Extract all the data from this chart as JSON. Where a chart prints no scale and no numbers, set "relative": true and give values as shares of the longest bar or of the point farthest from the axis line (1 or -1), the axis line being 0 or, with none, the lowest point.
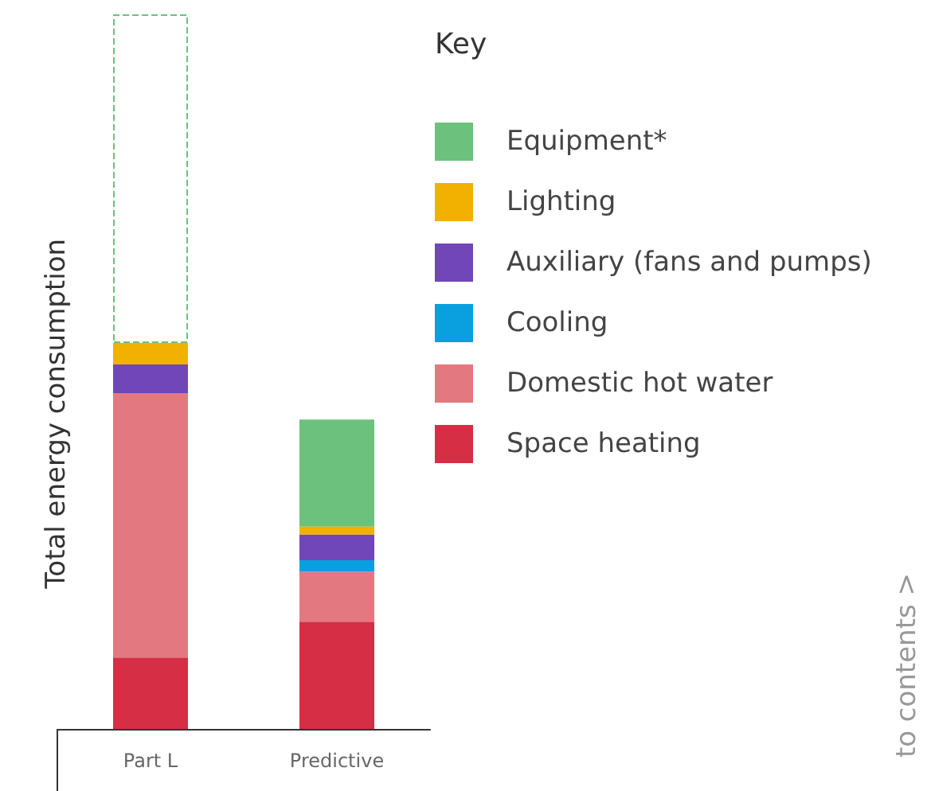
{
  "chart_data": {
    "type": "bar",
    "stacked": true,
    "relative": true,
    "ylabel": "Total energy consumption",
    "legend_title": "Key",
    "legend": "right",
    "categories": [
      "Part L",
      "Predictive"
    ],
    "series": [
      {
        "name": "Space heating",
        "color": "#d62e45",
        "values": [
          0.1,
          0.15
        ]
      },
      {
        "name": "Domestic hot water",
        "color": "#e47880",
        "values": [
          0.37,
          0.07
        ]
      },
      {
        "name": "Cooling",
        "color": "#0aa0e0",
        "values": [
          null,
          0.016
        ]
      },
      {
        "name": "Auxiliary (fans and pumps)",
        "color": "#7046b8",
        "values": [
          0.04,
          0.036
        ]
      },
      {
        "name": "Lighting",
        "color": "#f2b000",
        "values": [
          0.03,
          0.011
        ]
      },
      {
        "name": "Equipment*",
        "color": "#6cc17d",
        "colors": [
          "#ffffff",
          "#6cc17d"
        ],
        "values": [
          0.46,
          0.15
        ]
      }
    ],
    "annotations": [
      "to contents >"
    ]
  }
}
